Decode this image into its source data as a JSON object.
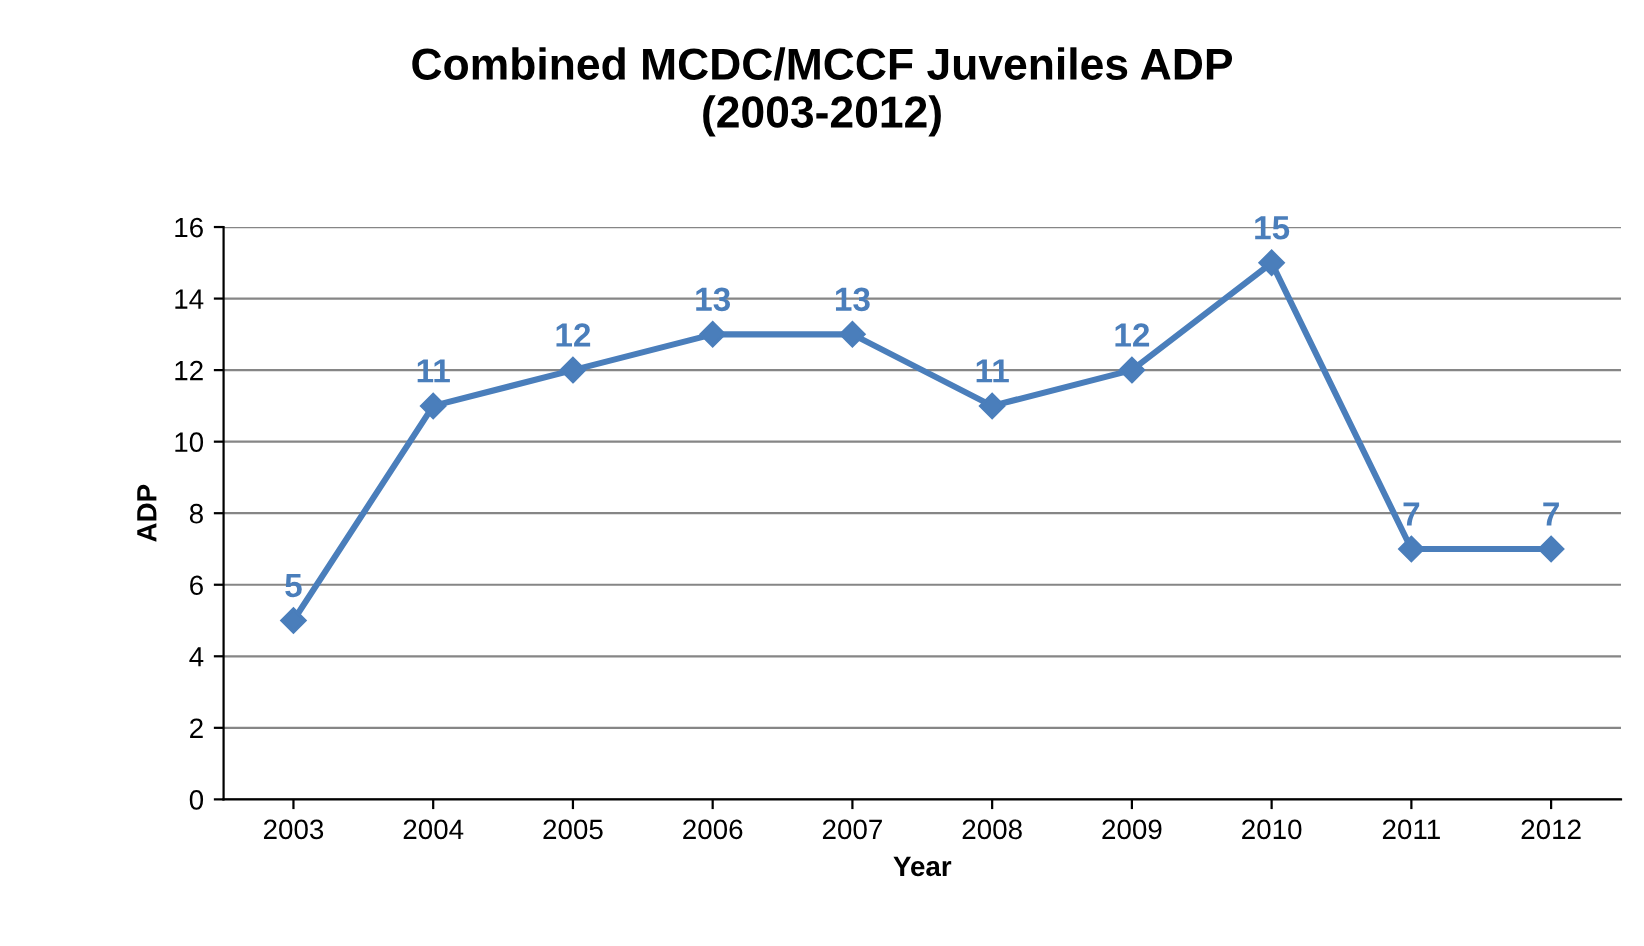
{
  "chart_data": {
    "type": "line",
    "title": "Combined MCDC/MCCF Juveniles ADP\n(2003-2012)",
    "xlabel": "Year",
    "ylabel": "ADP",
    "categories": [
      "2003",
      "2004",
      "2005",
      "2006",
      "2007",
      "2008",
      "2009",
      "2010",
      "2011",
      "2012"
    ],
    "series": [
      {
        "color": "#4a7ebb",
        "values": [
          5,
          11,
          12,
          13,
          13,
          11,
          12,
          15,
          7,
          7
        ]
      }
    ],
    "ylim": [
      0,
      16
    ],
    "yticks": [
      0,
      2,
      4,
      6,
      8,
      10,
      12,
      14,
      16
    ],
    "grid": "y",
    "marker": "diamond",
    "line_style": "solid",
    "data_labels": true,
    "legend": false
  }
}
